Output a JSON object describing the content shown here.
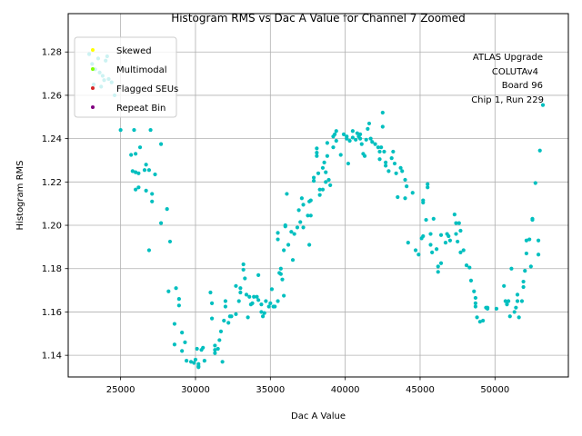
{
  "chart_data": {
    "type": "scatter",
    "title": "Histogram RMS vs Dac A Value for Channel 7 Zoomed",
    "xlabel": "Dac A Value",
    "ylabel": "Histogram RMS",
    "xlim": [
      21500,
      54900
    ],
    "ylim": [
      1.13,
      1.2977
    ],
    "xticks": [
      25000,
      30000,
      35000,
      40000,
      45000,
      50000
    ],
    "xtick_labels": [
      "25000",
      "30000",
      "35000",
      "40000",
      "45000",
      "50000"
    ],
    "yticks": [
      1.14,
      1.16,
      1.18,
      1.2,
      1.22,
      1.24,
      1.26,
      1.28
    ],
    "ytick_labels": [
      "1.14",
      "1.16",
      "1.18",
      "1.20",
      "1.22",
      "1.24",
      "1.26",
      "1.28"
    ],
    "grid": true,
    "legend": {
      "placement": "top-left",
      "entries": [
        {
          "label": "Skewed",
          "color": "#ffff00"
        },
        {
          "label": "Multimodal",
          "color": "#7fff00"
        },
        {
          "label": "Flagged SEUs",
          "color": "#d62728"
        },
        {
          "label": "Repeat Bin",
          "color": "#800080"
        }
      ]
    },
    "annotation": [
      "ATLAS Upgrade",
      "COLUTAv4",
      "Board 96",
      "Chip 1, Run 229"
    ],
    "series": [
      {
        "name": "Data",
        "color": "#00bfbf",
        "points": [
          [
            22900,
            1.279
          ],
          [
            23100,
            1.2745
          ],
          [
            23300,
            1.272
          ],
          [
            23500,
            1.277
          ],
          [
            23600,
            1.2705
          ],
          [
            23800,
            1.269
          ],
          [
            24000,
            1.276
          ],
          [
            23900,
            1.267
          ],
          [
            24200,
            1.2675
          ],
          [
            24400,
            1.266
          ],
          [
            24600,
            1.26
          ],
          [
            23200,
            1.265
          ],
          [
            23700,
            1.264
          ],
          [
            24100,
            1.278
          ],
          [
            25000,
            1.244
          ],
          [
            25900,
            1.244
          ],
          [
            26300,
            1.236
          ],
          [
            26000,
            1.233
          ],
          [
            25700,
            1.2325
          ],
          [
            25800,
            1.225
          ],
          [
            26000,
            1.2245
          ],
          [
            26200,
            1.224
          ],
          [
            26700,
            1.228
          ],
          [
            26600,
            1.2255
          ],
          [
            26900,
            1.2255
          ],
          [
            27300,
            1.2235
          ],
          [
            26000,
            1.2165
          ],
          [
            26200,
            1.2175
          ],
          [
            26700,
            1.216
          ],
          [
            27100,
            1.2145
          ],
          [
            27100,
            1.211
          ],
          [
            27700,
            1.2375
          ],
          [
            27000,
            1.244
          ],
          [
            27700,
            1.201
          ],
          [
            28100,
            1.2075
          ],
          [
            28300,
            1.1925
          ],
          [
            26900,
            1.1885
          ],
          [
            28200,
            1.1695
          ],
          [
            28700,
            1.171
          ],
          [
            28900,
            1.166
          ],
          [
            28900,
            1.163
          ],
          [
            28600,
            1.1545
          ],
          [
            29100,
            1.1505
          ],
          [
            28600,
            1.145
          ],
          [
            29300,
            1.146
          ],
          [
            29100,
            1.142
          ],
          [
            29400,
            1.1375
          ],
          [
            29700,
            1.137
          ],
          [
            29900,
            1.1365
          ],
          [
            30000,
            1.138
          ],
          [
            30100,
            1.143
          ],
          [
            30200,
            1.136
          ],
          [
            30200,
            1.1345
          ],
          [
            30400,
            1.1425
          ],
          [
            30500,
            1.1435
          ],
          [
            30600,
            1.1375
          ],
          [
            30200,
            1.135
          ],
          [
            31000,
            1.169
          ],
          [
            31100,
            1.164
          ],
          [
            31100,
            1.157
          ],
          [
            31300,
            1.1445
          ],
          [
            31300,
            1.141
          ],
          [
            31300,
            1.1425
          ],
          [
            31500,
            1.143
          ],
          [
            31600,
            1.147
          ],
          [
            31700,
            1.151
          ],
          [
            31800,
            1.137
          ],
          [
            31900,
            1.156
          ],
          [
            32000,
            1.1625
          ],
          [
            32000,
            1.165
          ],
          [
            32200,
            1.155
          ],
          [
            32300,
            1.158
          ],
          [
            32400,
            1.158
          ],
          [
            32700,
            1.159
          ],
          [
            32700,
            1.172
          ],
          [
            33000,
            1.171
          ],
          [
            33000,
            1.169
          ],
          [
            32900,
            1.165
          ],
          [
            33200,
            1.182
          ],
          [
            33200,
            1.1795
          ],
          [
            33300,
            1.1755
          ],
          [
            33400,
            1.168
          ],
          [
            33500,
            1.1575
          ],
          [
            33600,
            1.167
          ],
          [
            33700,
            1.1635
          ],
          [
            33800,
            1.164
          ],
          [
            33900,
            1.167
          ],
          [
            34100,
            1.167
          ],
          [
            34200,
            1.1655
          ],
          [
            34400,
            1.1635
          ],
          [
            34200,
            1.177
          ],
          [
            34400,
            1.16
          ],
          [
            34500,
            1.158
          ],
          [
            34600,
            1.1595
          ],
          [
            34700,
            1.165
          ],
          [
            34900,
            1.1625
          ],
          [
            35000,
            1.164
          ],
          [
            35100,
            1.1705
          ],
          [
            35200,
            1.1625
          ],
          [
            35300,
            1.1625
          ],
          [
            35500,
            1.165
          ],
          [
            35500,
            1.1935
          ],
          [
            35500,
            1.1965
          ],
          [
            35600,
            1.178
          ],
          [
            35700,
            1.1775
          ],
          [
            35700,
            1.18
          ],
          [
            35800,
            1.175
          ],
          [
            35900,
            1.1675
          ],
          [
            35900,
            1.1885
          ],
          [
            36000,
            1.2
          ],
          [
            36000,
            1.1995
          ],
          [
            36200,
            1.191
          ],
          [
            36100,
            1.2145
          ],
          [
            36400,
            1.197
          ],
          [
            36500,
            1.184
          ],
          [
            36600,
            1.196
          ],
          [
            36800,
            1.199
          ],
          [
            36900,
            1.207
          ],
          [
            37000,
            1.2015
          ],
          [
            37100,
            1.2125
          ],
          [
            37200,
            1.2095
          ],
          [
            37200,
            1.199
          ],
          [
            37500,
            1.2045
          ],
          [
            37600,
            1.191
          ],
          [
            37700,
            1.2045
          ],
          [
            37600,
            1.211
          ],
          [
            37700,
            1.2115
          ],
          [
            37900,
            1.222
          ],
          [
            37900,
            1.2205
          ],
          [
            38100,
            1.2355
          ],
          [
            38100,
            1.2335
          ],
          [
            38100,
            1.232
          ],
          [
            38200,
            1.224
          ],
          [
            38300,
            1.214
          ],
          [
            38300,
            1.2165
          ],
          [
            38500,
            1.2265
          ],
          [
            38500,
            1.2165
          ],
          [
            38600,
            1.229
          ],
          [
            38700,
            1.22
          ],
          [
            38700,
            1.2245
          ],
          [
            38800,
            1.238
          ],
          [
            38800,
            1.232
          ],
          [
            38900,
            1.221
          ],
          [
            39000,
            1.2185
          ],
          [
            39200,
            1.236
          ],
          [
            39200,
            1.241
          ],
          [
            39300,
            1.242
          ],
          [
            39400,
            1.239
          ],
          [
            39400,
            1.2435
          ],
          [
            39700,
            1.2325
          ],
          [
            39900,
            1.242
          ],
          [
            40100,
            1.24
          ],
          [
            40100,
            1.241
          ],
          [
            40200,
            1.2285
          ],
          [
            40300,
            1.239
          ],
          [
            40500,
            1.2435
          ],
          [
            40500,
            1.2405
          ],
          [
            40700,
            1.2395
          ],
          [
            40800,
            1.2425
          ],
          [
            40900,
            1.241
          ],
          [
            41000,
            1.24
          ],
          [
            41000,
            1.242
          ],
          [
            41100,
            1.2375
          ],
          [
            41200,
            1.233
          ],
          [
            41300,
            1.232
          ],
          [
            41400,
            1.2395
          ],
          [
            41500,
            1.2445
          ],
          [
            41600,
            1.247
          ],
          [
            41700,
            1.24
          ],
          [
            41800,
            1.2385
          ],
          [
            42000,
            1.2375
          ],
          [
            42200,
            1.236
          ],
          [
            42300,
            1.234
          ],
          [
            42300,
            1.2305
          ],
          [
            42400,
            1.236
          ],
          [
            42500,
            1.252
          ],
          [
            42500,
            1.2455
          ],
          [
            42600,
            1.234
          ],
          [
            42700,
            1.229
          ],
          [
            42700,
            1.2275
          ],
          [
            42900,
            1.225
          ],
          [
            43100,
            1.231
          ],
          [
            43200,
            1.234
          ],
          [
            43300,
            1.2285
          ],
          [
            43400,
            1.224
          ],
          [
            43500,
            1.213
          ],
          [
            43700,
            1.2265
          ],
          [
            43800,
            1.225
          ],
          [
            44000,
            1.221
          ],
          [
            44000,
            1.2125
          ],
          [
            44100,
            1.218
          ],
          [
            44200,
            1.192
          ],
          [
            44500,
            1.215
          ],
          [
            44700,
            1.1885
          ],
          [
            44900,
            1.1865
          ],
          [
            45200,
            1.2115
          ],
          [
            45200,
            1.2105
          ],
          [
            45100,
            1.194
          ],
          [
            45200,
            1.195
          ],
          [
            45400,
            1.2025
          ],
          [
            45500,
            1.219
          ],
          [
            45500,
            1.2175
          ],
          [
            45700,
            1.196
          ],
          [
            45700,
            1.191
          ],
          [
            45800,
            1.1875
          ],
          [
            45900,
            1.203
          ],
          [
            46100,
            1.189
          ],
          [
            46200,
            1.181
          ],
          [
            46200,
            1.1785
          ],
          [
            46400,
            1.1955
          ],
          [
            46400,
            1.1825
          ],
          [
            46700,
            1.192
          ],
          [
            46800,
            1.196
          ],
          [
            46900,
            1.195
          ],
          [
            47000,
            1.193
          ],
          [
            47300,
            1.205
          ],
          [
            47400,
            1.196
          ],
          [
            47400,
            1.201
          ],
          [
            47500,
            1.1925
          ],
          [
            47600,
            1.201
          ],
          [
            47700,
            1.1975
          ],
          [
            47700,
            1.1875
          ],
          [
            47900,
            1.1885
          ],
          [
            48100,
            1.1815
          ],
          [
            48300,
            1.1805
          ],
          [
            48400,
            1.1745
          ],
          [
            48600,
            1.1695
          ],
          [
            48700,
            1.1665
          ],
          [
            48700,
            1.164
          ],
          [
            48700,
            1.1625
          ],
          [
            48800,
            1.1575
          ],
          [
            49000,
            1.1555
          ],
          [
            49200,
            1.156
          ],
          [
            49400,
            1.162
          ],
          [
            49500,
            1.1615
          ],
          [
            49500,
            1.162
          ],
          [
            50100,
            1.1615
          ],
          [
            50600,
            1.172
          ],
          [
            50700,
            1.165
          ],
          [
            50800,
            1.1635
          ],
          [
            50900,
            1.165
          ],
          [
            51000,
            1.158
          ],
          [
            51100,
            1.18
          ],
          [
            51300,
            1.16
          ],
          [
            51400,
            1.162
          ],
          [
            51500,
            1.165
          ],
          [
            51500,
            1.168
          ],
          [
            51600,
            1.1575
          ],
          [
            51800,
            1.165
          ],
          [
            51900,
            1.1715
          ],
          [
            51900,
            1.174
          ],
          [
            52000,
            1.179
          ],
          [
            52100,
            1.187
          ],
          [
            52100,
            1.193
          ],
          [
            52300,
            1.1935
          ],
          [
            52400,
            1.181
          ],
          [
            52500,
            1.203
          ],
          [
            52500,
            1.2025
          ],
          [
            52700,
            1.2195
          ],
          [
            52900,
            1.193
          ],
          [
            52900,
            1.1865
          ],
          [
            53000,
            1.2345
          ],
          [
            53200,
            1.2555
          ]
        ]
      }
    ]
  }
}
